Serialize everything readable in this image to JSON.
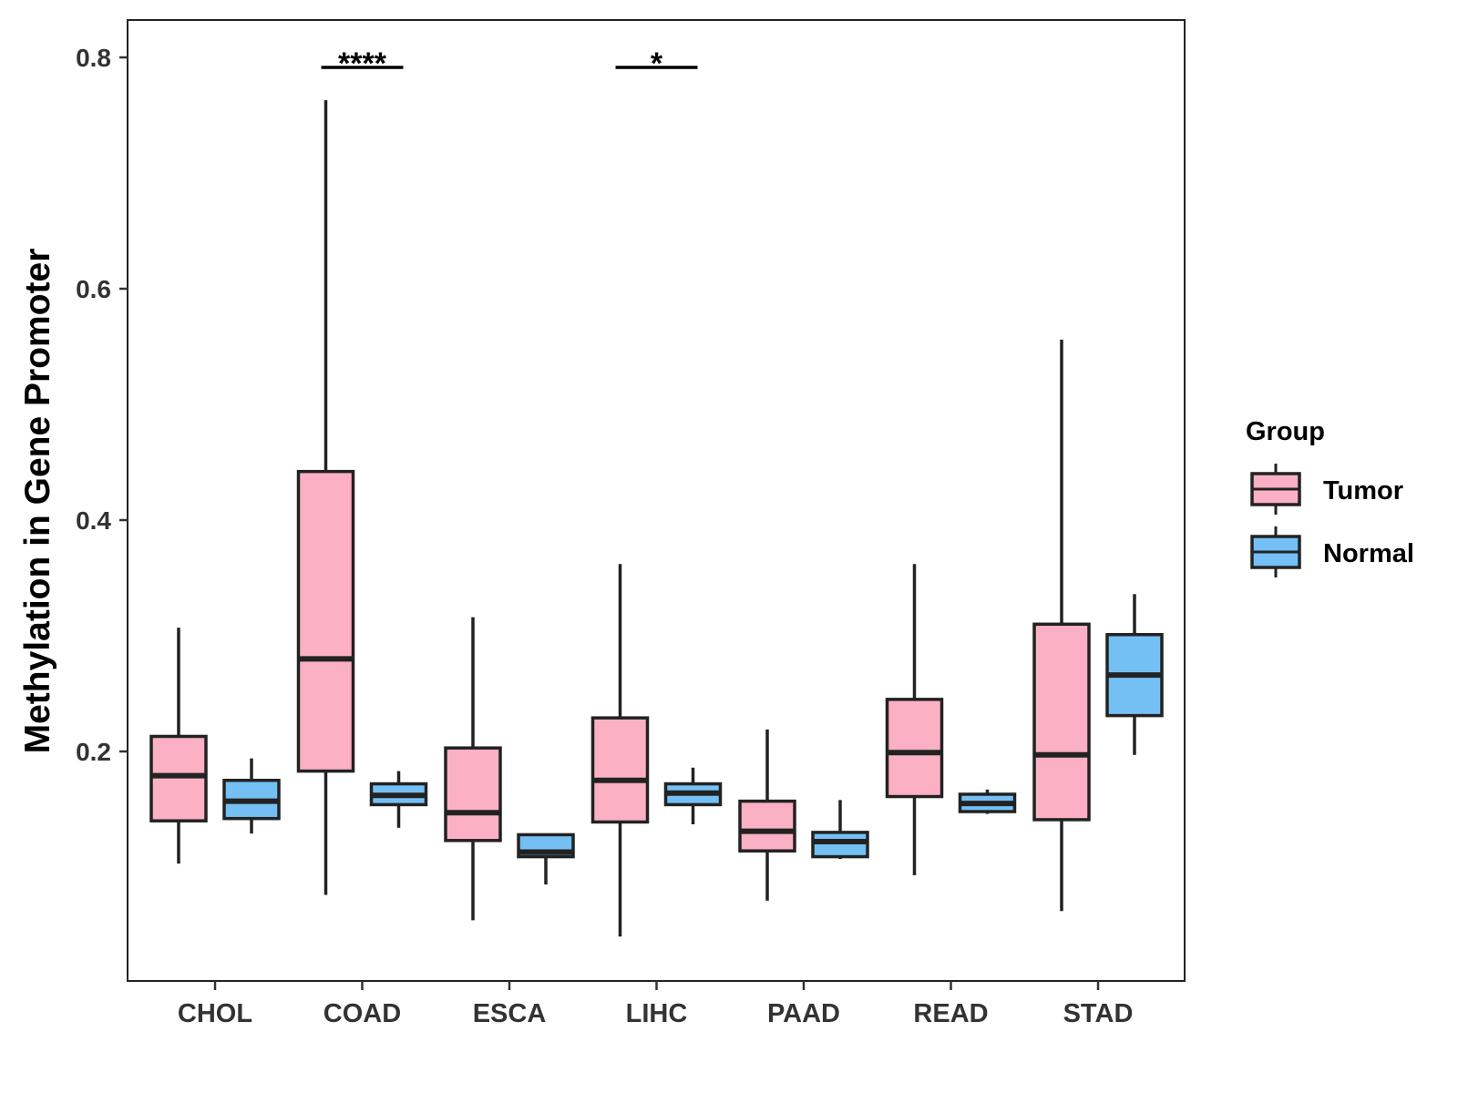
{
  "chart_data": {
    "type": "boxplot",
    "title": "",
    "xlabel": "",
    "ylabel": "Methylation in Gene Promoter",
    "ylim": [
      0.0,
      0.83
    ],
    "yticks": [
      0.2,
      0.4,
      0.6,
      0.8
    ],
    "ytick_labels": [
      "0.2",
      "0.4",
      "0.6",
      "0.8"
    ],
    "grid": false,
    "categories": [
      "CHOL",
      "COAD",
      "ESCA",
      "LIHC",
      "PAAD",
      "READ",
      "STAD"
    ],
    "legend": {
      "title": "Group",
      "position": "right",
      "entries": [
        {
          "name": "Tumor",
          "color": "#fbb0c3"
        },
        {
          "name": "Normal",
          "color": "#74c0f5"
        }
      ]
    },
    "series": [
      {
        "name": "Tumor",
        "color": "#fbb0c3",
        "boxes": [
          {
            "category": "CHOL",
            "whisker_low": 0.103,
            "q1": 0.14,
            "median": 0.179,
            "q3": 0.213,
            "whisker_high": 0.307
          },
          {
            "category": "COAD",
            "whisker_low": 0.076,
            "q1": 0.183,
            "median": 0.28,
            "q3": 0.442,
            "whisker_high": 0.763
          },
          {
            "category": "ESCA",
            "whisker_low": 0.054,
            "q1": 0.123,
            "median": 0.147,
            "q3": 0.203,
            "whisker_high": 0.316
          },
          {
            "category": "LIHC",
            "whisker_low": 0.04,
            "q1": 0.139,
            "median": 0.175,
            "q3": 0.229,
            "whisker_high": 0.362
          },
          {
            "category": "PAAD",
            "whisker_low": 0.071,
            "q1": 0.114,
            "median": 0.131,
            "q3": 0.157,
            "whisker_high": 0.219
          },
          {
            "category": "READ",
            "whisker_low": 0.093,
            "q1": 0.161,
            "median": 0.199,
            "q3": 0.245,
            "whisker_high": 0.362
          },
          {
            "category": "STAD",
            "whisker_low": 0.062,
            "q1": 0.141,
            "median": 0.197,
            "q3": 0.31,
            "whisker_high": 0.556
          }
        ]
      },
      {
        "name": "Normal",
        "color": "#74c0f5",
        "boxes": [
          {
            "category": "CHOL",
            "whisker_low": 0.129,
            "q1": 0.142,
            "median": 0.157,
            "q3": 0.175,
            "whisker_high": 0.194
          },
          {
            "category": "COAD",
            "whisker_low": 0.134,
            "q1": 0.154,
            "median": 0.162,
            "q3": 0.172,
            "whisker_high": 0.183
          },
          {
            "category": "ESCA",
            "whisker_low": 0.085,
            "q1": 0.109,
            "median": 0.113,
            "q3": 0.128,
            "whisker_high": 0.128
          },
          {
            "category": "LIHC",
            "whisker_low": 0.137,
            "q1": 0.154,
            "median": 0.164,
            "q3": 0.172,
            "whisker_high": 0.186
          },
          {
            "category": "PAAD",
            "whisker_low": 0.107,
            "q1": 0.109,
            "median": 0.122,
            "q3": 0.13,
            "whisker_high": 0.158
          },
          {
            "category": "READ",
            "whisker_low": 0.146,
            "q1": 0.148,
            "median": 0.155,
            "q3": 0.163,
            "whisker_high": 0.167
          },
          {
            "category": "STAD",
            "whisker_low": 0.197,
            "q1": 0.231,
            "median": 0.266,
            "q3": 0.301,
            "whisker_high": 0.336
          }
        ]
      }
    ],
    "annotations": [
      {
        "category": "COAD",
        "label": "****",
        "y": 0.79
      },
      {
        "category": "LIHC",
        "label": "*",
        "y": 0.79
      }
    ]
  }
}
